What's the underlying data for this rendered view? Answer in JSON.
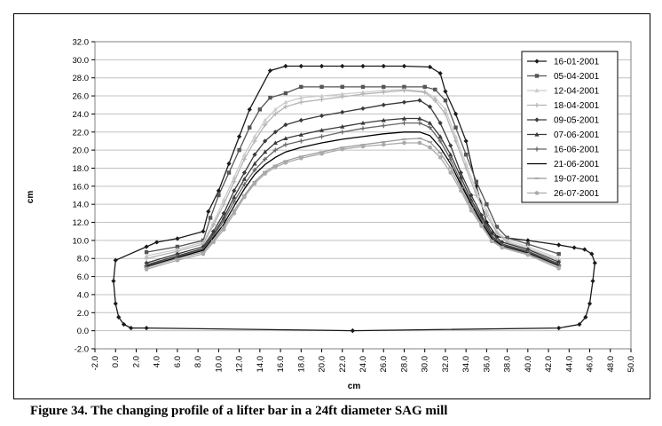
{
  "caption": "Figure 34.  The changing profile of a lifter bar in a 24ft diameter SAG mill",
  "chart_data": {
    "type": "line",
    "xlabel": "cm",
    "ylabel": "cm",
    "xlim": [
      -2.0,
      50.0
    ],
    "ylim": [
      -2.0,
      32.0
    ],
    "x_ticks": [
      "-2.0",
      "0.0",
      "2.0",
      "4.0",
      "6.0",
      "8.0",
      "10.0",
      "12.0",
      "14.0",
      "16.0",
      "18.0",
      "20.0",
      "22.0",
      "24.0",
      "26.0",
      "28.0",
      "30.0",
      "32.0",
      "34.0",
      "36.0",
      "38.0",
      "40.0",
      "42.0",
      "44.0",
      "46.0",
      "48.0",
      "50.0"
    ],
    "y_ticks": [
      "-2.0",
      "0.0",
      "2.0",
      "4.0",
      "6.0",
      "8.0",
      "10.0",
      "12.0",
      "14.0",
      "16.0",
      "18.0",
      "20.0",
      "22.0",
      "24.0",
      "26.0",
      "28.0",
      "30.0",
      "32.0"
    ],
    "grid": "horizontal",
    "legend_position": "right",
    "series": [
      {
        "name": "16-01-2001",
        "color": "#1a1a1a",
        "marker": "diamond",
        "x": [
          23.0,
          43.0,
          45.0,
          45.6,
          46.0,
          46.3,
          46.5,
          46.2,
          45.5,
          44.5,
          43.0,
          40.0,
          37.0,
          36.0,
          35.0,
          34.0,
          33.0,
          32.0,
          31.5,
          30.5,
          28.0,
          26.0,
          24.0,
          22.0,
          20.0,
          18.0,
          16.5,
          15.0,
          13.0,
          12.0,
          11.0,
          10.0,
          9.0,
          8.5,
          6.0,
          4.0,
          3.0,
          0.0,
          -0.2,
          0.0,
          0.3,
          0.8,
          1.5,
          3.0,
          23.0
        ],
        "y": [
          0.0,
          0.3,
          0.7,
          1.5,
          3.0,
          5.5,
          7.5,
          8.5,
          9.0,
          9.2,
          9.5,
          10.0,
          10.4,
          12.0,
          16.0,
          21.0,
          24.0,
          26.5,
          28.5,
          29.2,
          29.3,
          29.3,
          29.3,
          29.3,
          29.3,
          29.3,
          29.3,
          28.8,
          24.5,
          21.5,
          18.5,
          15.5,
          13.2,
          11.0,
          10.2,
          9.8,
          9.3,
          7.8,
          5.5,
          3.0,
          1.5,
          0.7,
          0.3,
          0.3,
          0.0
        ]
      },
      {
        "name": "05-04-2001",
        "color": "#555555",
        "marker": "square",
        "x": [
          3.0,
          6.0,
          8.5,
          9.2,
          10.0,
          11.0,
          12.0,
          13.0,
          14.0,
          15.0,
          16.5,
          18.0,
          20.0,
          22.0,
          24.0,
          26.0,
          28.0,
          30.0,
          31.0,
          32.0,
          33.0,
          34.0,
          35.0,
          36.0,
          37.0,
          38.0,
          40.0,
          43.0
        ],
        "y": [
          8.7,
          9.3,
          10.0,
          12.5,
          15.0,
          17.5,
          20.0,
          22.5,
          24.5,
          25.8,
          26.3,
          27.0,
          27.0,
          27.0,
          27.0,
          27.0,
          27.0,
          27.0,
          26.7,
          25.5,
          22.5,
          19.5,
          16.5,
          14.0,
          11.5,
          10.3,
          9.6,
          8.5
        ]
      },
      {
        "name": "12-04-2001",
        "color": "#cccccc",
        "marker": "triangle",
        "x": [
          3.0,
          6.0,
          8.5,
          9.5,
          10.5,
          11.5,
          12.5,
          13.5,
          14.5,
          15.5,
          16.5,
          18.0,
          20.0,
          22.0,
          24.0,
          26.0,
          28.0,
          30.0,
          31.0,
          32.0,
          33.0,
          34.0,
          35.0,
          36.0,
          37.0,
          38.0,
          40.0,
          43.0
        ],
        "y": [
          8.3,
          9.0,
          9.8,
          12.0,
          14.5,
          17.0,
          19.5,
          21.5,
          23.3,
          24.5,
          25.3,
          25.8,
          26.0,
          26.2,
          26.4,
          26.6,
          26.7,
          26.5,
          25.8,
          24.5,
          21.5,
          18.5,
          15.5,
          13.3,
          11.0,
          10.0,
          9.3,
          8.0
        ]
      },
      {
        "name": "18-04-2001",
        "color": "#b4b4b4",
        "marker": "plus",
        "x": [
          3.0,
          6.0,
          8.5,
          9.5,
          10.5,
          11.5,
          12.5,
          13.5,
          14.5,
          15.5,
          16.5,
          18.0,
          20.0,
          22.0,
          24.0,
          26.0,
          28.0,
          30.0,
          31.0,
          32.0,
          33.0,
          34.0,
          35.0,
          36.0,
          37.0,
          38.0,
          40.0,
          43.0
        ],
        "y": [
          8.0,
          8.8,
          9.6,
          11.7,
          14.0,
          16.5,
          19.0,
          21.0,
          22.8,
          24.0,
          24.8,
          25.3,
          25.6,
          25.9,
          26.2,
          26.4,
          26.6,
          26.4,
          25.5,
          24.0,
          21.0,
          18.0,
          15.0,
          12.8,
          10.8,
          9.8,
          9.1,
          7.8
        ]
      },
      {
        "name": "09-05-2001",
        "color": "#3a3a3a",
        "marker": "diamond",
        "x": [
          3.0,
          6.0,
          8.5,
          9.5,
          10.5,
          11.5,
          12.5,
          13.5,
          14.5,
          15.5,
          16.5,
          18.0,
          20.0,
          22.0,
          24.0,
          26.0,
          28.0,
          29.5,
          30.5,
          31.5,
          32.5,
          33.5,
          34.5,
          35.5,
          36.5,
          37.5,
          40.0,
          43.0
        ],
        "y": [
          7.5,
          8.5,
          9.3,
          11.0,
          13.0,
          15.5,
          17.5,
          19.5,
          21.0,
          22.0,
          22.8,
          23.3,
          23.8,
          24.2,
          24.6,
          25.0,
          25.3,
          25.5,
          24.8,
          23.0,
          20.5,
          17.5,
          15.0,
          12.8,
          10.8,
          9.8,
          9.0,
          7.6
        ]
      },
      {
        "name": "07-06-2001",
        "color": "#3a3a3a",
        "marker": "triangle",
        "x": [
          3.0,
          6.0,
          8.5,
          9.5,
          10.5,
          11.5,
          12.5,
          13.5,
          14.5,
          15.5,
          16.5,
          18.0,
          20.0,
          22.0,
          24.0,
          26.0,
          28.0,
          29.5,
          30.5,
          31.5,
          32.5,
          33.5,
          34.5,
          35.5,
          36.5,
          37.5,
          40.0,
          43.0
        ],
        "y": [
          7.3,
          8.3,
          9.1,
          10.7,
          12.5,
          14.8,
          16.8,
          18.5,
          19.8,
          20.8,
          21.3,
          21.7,
          22.2,
          22.6,
          23.0,
          23.3,
          23.5,
          23.5,
          23.0,
          21.5,
          19.5,
          17.0,
          14.5,
          12.5,
          10.5,
          9.6,
          8.8,
          7.4
        ]
      },
      {
        "name": "16-06-2001",
        "color": "#666666",
        "marker": "plus",
        "x": [
          3.0,
          6.0,
          8.5,
          9.5,
          10.5,
          11.5,
          12.5,
          13.5,
          14.5,
          15.5,
          16.5,
          18.0,
          20.0,
          22.0,
          24.0,
          26.0,
          28.0,
          29.5,
          30.5,
          31.5,
          32.5,
          33.5,
          34.5,
          35.5,
          36.5,
          37.5,
          40.0,
          43.0
        ],
        "y": [
          7.2,
          8.2,
          9.0,
          10.5,
          12.2,
          14.3,
          16.2,
          17.8,
          19.0,
          20.0,
          20.6,
          21.0,
          21.5,
          22.0,
          22.4,
          22.7,
          23.0,
          23.0,
          22.5,
          21.0,
          19.0,
          16.5,
          14.2,
          12.2,
          10.3,
          9.5,
          8.7,
          7.3
        ]
      },
      {
        "name": "21-06-2001",
        "color": "#000000",
        "marker": "none",
        "x": [
          3.0,
          6.0,
          8.5,
          9.5,
          10.5,
          11.5,
          12.5,
          13.5,
          14.5,
          15.5,
          16.5,
          18.0,
          20.0,
          22.0,
          24.0,
          26.0,
          28.0,
          29.5,
          30.5,
          31.5,
          32.5,
          33.5,
          34.5,
          35.5,
          36.5,
          37.5,
          40.0,
          43.0
        ],
        "y": [
          7.1,
          8.1,
          8.9,
          10.3,
          11.8,
          13.8,
          15.7,
          17.3,
          18.4,
          19.2,
          19.8,
          20.3,
          20.8,
          21.2,
          21.5,
          21.8,
          22.0,
          22.0,
          21.6,
          20.3,
          18.5,
          16.2,
          14.0,
          12.0,
          10.2,
          9.4,
          8.6,
          7.2
        ]
      },
      {
        "name": "19-07-2001",
        "color": "#9a9a9a",
        "marker": "dash",
        "x": [
          3.0,
          6.0,
          8.5,
          9.5,
          10.5,
          11.5,
          12.5,
          13.5,
          14.5,
          15.5,
          16.5,
          18.0,
          20.0,
          22.0,
          24.0,
          26.0,
          28.0,
          29.5,
          30.5,
          31.5,
          32.5,
          33.5,
          34.5,
          35.5,
          36.5,
          37.5,
          40.0,
          43.0
        ],
        "y": [
          7.0,
          8.0,
          8.7,
          10.0,
          11.5,
          13.3,
          15.0,
          16.5,
          17.6,
          18.3,
          18.8,
          19.3,
          19.8,
          20.3,
          20.6,
          20.9,
          21.2,
          21.3,
          20.9,
          19.7,
          18.0,
          15.8,
          13.6,
          11.8,
          10.0,
          9.3,
          8.5,
          7.1
        ]
      },
      {
        "name": "26-07-2001",
        "color": "#aaaaaa",
        "marker": "circle",
        "x": [
          3.0,
          6.0,
          8.5,
          9.5,
          10.5,
          11.5,
          12.5,
          13.5,
          14.5,
          15.5,
          16.5,
          18.0,
          20.0,
          22.0,
          24.0,
          26.0,
          28.0,
          29.5,
          30.5,
          31.5,
          32.5,
          33.5,
          34.5,
          35.5,
          36.5,
          37.5,
          40.0,
          43.0
        ],
        "y": [
          6.8,
          7.8,
          8.5,
          9.8,
          11.2,
          13.0,
          14.8,
          16.3,
          17.4,
          18.1,
          18.6,
          19.1,
          19.6,
          20.1,
          20.4,
          20.6,
          20.8,
          20.8,
          20.3,
          19.2,
          17.5,
          15.5,
          13.3,
          11.6,
          9.9,
          9.2,
          8.4,
          6.9
        ]
      }
    ]
  }
}
